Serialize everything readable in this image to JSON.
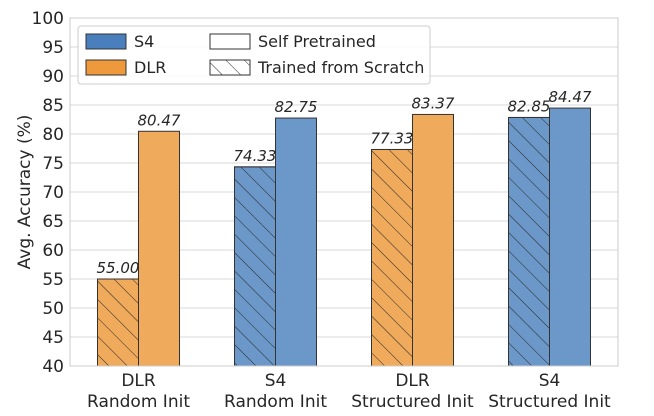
{
  "chart_data": {
    "type": "bar",
    "ylabel": "Avg. Accuracy (%)",
    "ylim": [
      40,
      100
    ],
    "yticks": [
      40,
      45,
      50,
      55,
      60,
      65,
      70,
      75,
      80,
      85,
      90,
      95,
      100
    ],
    "grid": true,
    "legend_position": "top-left",
    "categories": [
      {
        "line1": "DLR",
        "line2": "Random Init"
      },
      {
        "line1": "S4",
        "line2": "Random Init"
      },
      {
        "line1": "DLR",
        "line2": "Structured Init"
      },
      {
        "line1": "S4",
        "line2": "Structured Init"
      }
    ],
    "series": [
      {
        "name": "Trained from Scratch",
        "hatched": true,
        "values": [
          55.0,
          74.33,
          77.33,
          82.85
        ],
        "labels": [
          "55.00",
          "74.33",
          "77.33",
          "82.85"
        ],
        "models": [
          "DLR",
          "S4",
          "DLR",
          "S4"
        ]
      },
      {
        "name": "Self Pretrained",
        "hatched": false,
        "values": [
          80.47,
          82.75,
          83.37,
          84.47
        ],
        "labels": [
          "80.47",
          "82.75",
          "83.37",
          "84.47"
        ],
        "models": [
          "DLR",
          "S4",
          "DLR",
          "S4"
        ]
      }
    ],
    "legend": [
      {
        "label": "S4",
        "kind": "color",
        "model": "S4"
      },
      {
        "label": "Self Pretrained",
        "kind": "plain"
      },
      {
        "label": "DLR",
        "kind": "color",
        "model": "DLR"
      },
      {
        "label": "Trained from Scratch",
        "kind": "hatch"
      }
    ],
    "colors": {
      "S4": "#6b98c8",
      "DLR": "#f0aa5c",
      "S4_legend": "#4a7fbd",
      "DLR_legend": "#ee9a3c",
      "grid": "#d9d9d9",
      "edge": "#333333"
    }
  }
}
